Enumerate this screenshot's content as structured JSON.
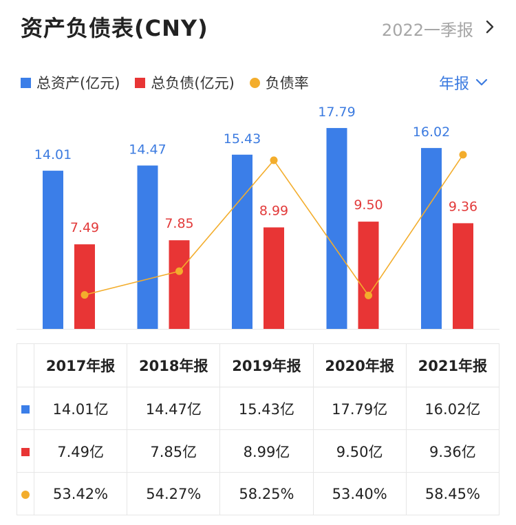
{
  "header": {
    "title": "资产负债表(CNY)",
    "period": "2022一季报",
    "period_icon": "chevron-right-icon"
  },
  "legend": {
    "items": [
      {
        "label": "总资产(亿元)",
        "color": "#3b7ee8",
        "shape": "square"
      },
      {
        "label": "总负债(亿元)",
        "color": "#e83535",
        "shape": "square"
      },
      {
        "label": "负债率",
        "color": "#f3ad2c",
        "shape": "dot"
      }
    ]
  },
  "selector": {
    "label": "年报",
    "icon": "chevron-down-icon"
  },
  "colors": {
    "assets": "#3b7ee8",
    "liabilities": "#e83535",
    "ratio": "#f3ad2c",
    "label_blue": "#3c7be0",
    "label_red": "#e23a3a"
  },
  "chart_data": {
    "type": "bar",
    "categories": [
      "2017年报",
      "2018年报",
      "2019年报",
      "2020年报",
      "2021年报"
    ],
    "series": [
      {
        "name": "总资产(亿元)",
        "type": "bar",
        "values": [
          14.01,
          14.47,
          15.43,
          17.79,
          16.02
        ],
        "labels": [
          "14.01",
          "14.47",
          "15.43",
          "17.79",
          "16.02"
        ]
      },
      {
        "name": "总负债(亿元)",
        "type": "bar",
        "values": [
          7.49,
          7.85,
          8.99,
          9.5,
          9.36
        ],
        "labels": [
          "7.49",
          "7.85",
          "8.99",
          "9.50",
          "9.36"
        ]
      },
      {
        "name": "负债率",
        "type": "line",
        "values": [
          53.42,
          54.27,
          58.25,
          53.4,
          58.45
        ]
      }
    ],
    "ylim": [
      0,
      19.5
    ],
    "ratio_ylim": [
      52.2,
      60.1
    ],
    "grid": false,
    "legend_position": "top-left"
  },
  "table": {
    "headers": [
      "2017年报",
      "2018年报",
      "2019年报",
      "2020年报",
      "2021年报"
    ],
    "rows": [
      {
        "marker": "square",
        "color": "#3b7ee8",
        "cells": [
          "14.01亿",
          "14.47亿",
          "15.43亿",
          "17.79亿",
          "16.02亿"
        ]
      },
      {
        "marker": "square",
        "color": "#e83535",
        "cells": [
          "7.49亿",
          "7.85亿",
          "8.99亿",
          "9.50亿",
          "9.36亿"
        ]
      },
      {
        "marker": "dot",
        "color": "#f3ad2c",
        "cells": [
          "53.42%",
          "54.27%",
          "58.25%",
          "53.40%",
          "58.45%"
        ]
      }
    ]
  }
}
